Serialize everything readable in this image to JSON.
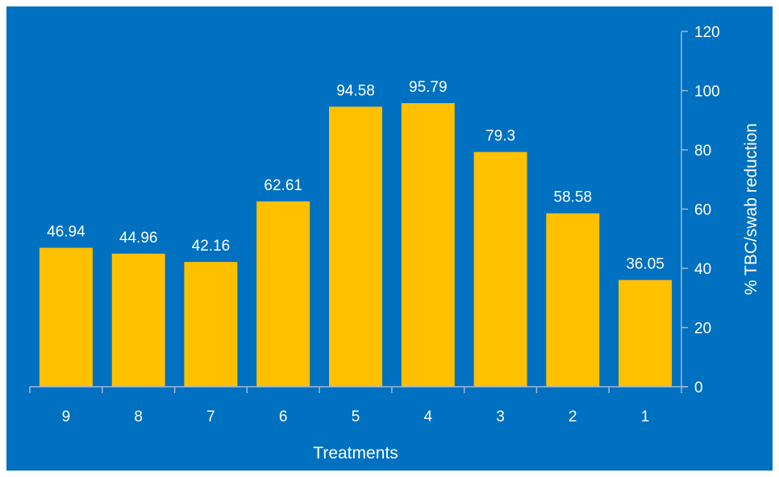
{
  "chart_data": {
    "type": "bar",
    "categories": [
      "9",
      "8",
      "7",
      "6",
      "5",
      "4",
      "3",
      "2",
      "1"
    ],
    "values": [
      46.94,
      44.96,
      42.16,
      62.61,
      94.58,
      95.79,
      79.3,
      58.58,
      36.05
    ],
    "value_labels": [
      "46.94",
      "44.96",
      "42.16",
      "62.61",
      "94.58",
      "95.79",
      "79.3",
      "58.58",
      "36.05"
    ],
    "xlabel": "Treatments",
    "ylabel": "% TBC/swab reduction",
    "ylim": [
      0,
      120
    ],
    "yticks": [
      "0",
      "20",
      "40",
      "60",
      "80",
      "100",
      "120"
    ],
    "y_axis_side": "right",
    "grid": false,
    "legend": "none",
    "colors": {
      "background": "#0070C0",
      "bar": "#FFC000",
      "text": "#FFFFFF",
      "axis": "#9DB8D9"
    }
  }
}
